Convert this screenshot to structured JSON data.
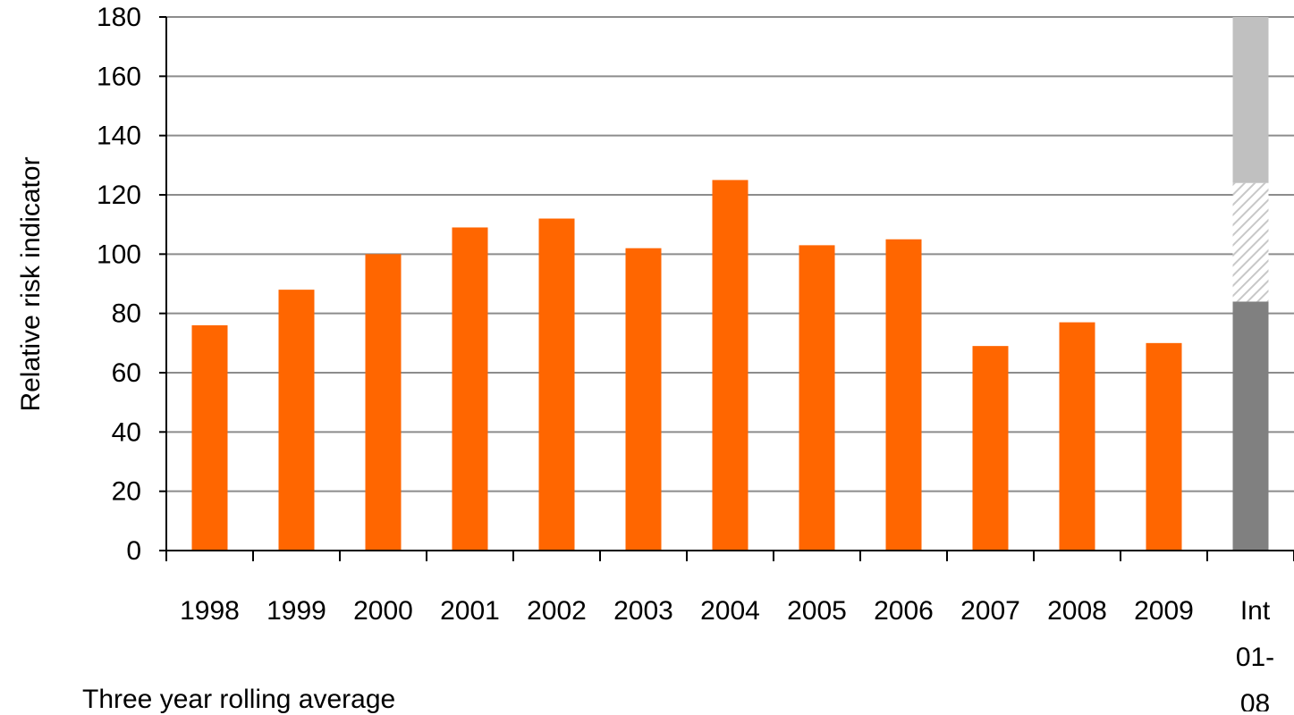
{
  "chart_data": {
    "type": "bar",
    "ylabel": "Relative risk indicator",
    "xlabel": "Three year rolling average",
    "ylim": [
      0,
      180
    ],
    "yticks": [
      0,
      20,
      40,
      60,
      80,
      100,
      120,
      140,
      160,
      180
    ],
    "grid": true,
    "categories": [
      "1998",
      "1999",
      "2000",
      "2001",
      "2002",
      "2003",
      "2004",
      "2005",
      "2006",
      "2007",
      "2008",
      "2009"
    ],
    "values": [
      76,
      88,
      100,
      109,
      112,
      102,
      125,
      103,
      105,
      69,
      77,
      70
    ],
    "bar_color": "#ff6600",
    "interval_bar": {
      "label": [
        "Int",
        "01-",
        "08"
      ],
      "segments": [
        {
          "from": 0,
          "to": 84,
          "color": "#808080",
          "fill": "solid"
        },
        {
          "from": 84,
          "to": 124,
          "color": "#c8c8c8",
          "fill": "hatched"
        },
        {
          "from": 124,
          "to": 180,
          "color": "#c0c0c0",
          "fill": "solid"
        }
      ]
    }
  }
}
